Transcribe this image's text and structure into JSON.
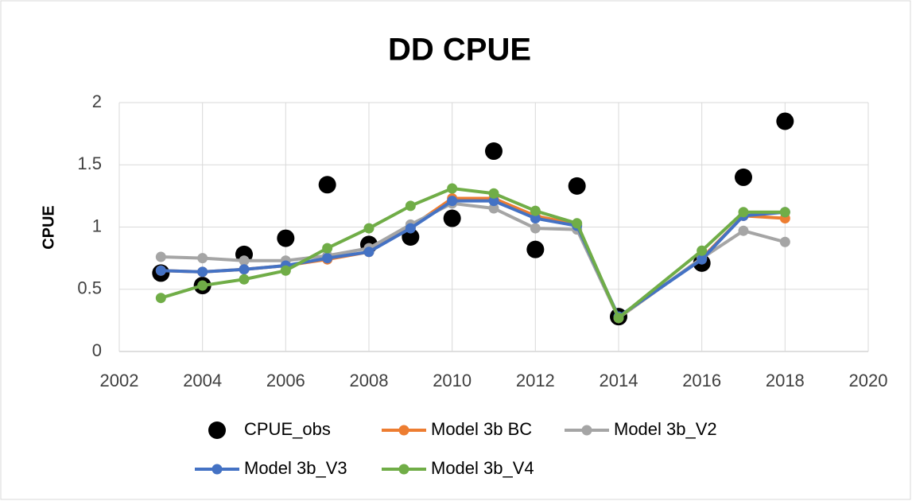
{
  "chart_data": {
    "type": "line",
    "title": "DD CPUE",
    "y_label": "CPUE",
    "x": [
      2003,
      2004,
      2005,
      2006,
      2007,
      2008,
      2009,
      2010,
      2011,
      2012,
      2013,
      2014,
      2016,
      2017,
      2018
    ],
    "series": [
      {
        "name": "CPUE_obs",
        "color": "#000000",
        "style": "markers",
        "values": [
          0.63,
          0.53,
          0.78,
          0.91,
          1.34,
          0.86,
          0.92,
          1.07,
          1.61,
          0.82,
          1.33,
          0.28,
          0.71,
          1.4,
          1.85
        ]
      },
      {
        "name": "Model 3b BC",
        "color": "#ed7d31",
        "style": "line",
        "values": [
          0.65,
          0.64,
          0.66,
          0.69,
          0.74,
          0.8,
          1.0,
          1.23,
          1.23,
          1.09,
          1.02,
          0.27,
          0.75,
          1.09,
          1.07
        ]
      },
      {
        "name": "Model 3b_V2",
        "color": "#a5a5a5",
        "style": "line",
        "values": [
          0.76,
          0.75,
          0.73,
          0.73,
          0.77,
          0.83,
          1.02,
          1.19,
          1.15,
          0.99,
          0.98,
          0.27,
          0.75,
          0.97,
          0.88
        ]
      },
      {
        "name": "Model 3b_V3",
        "color": "#4472c4",
        "style": "line",
        "values": [
          0.65,
          0.64,
          0.66,
          0.69,
          0.75,
          0.8,
          0.99,
          1.21,
          1.21,
          1.07,
          1.01,
          0.28,
          0.74,
          1.09,
          1.12
        ]
      },
      {
        "name": "Model 3b_V4",
        "color": "#70ad47",
        "style": "line",
        "values": [
          0.43,
          0.53,
          0.58,
          0.65,
          0.83,
          0.99,
          1.17,
          1.31,
          1.27,
          1.13,
          1.03,
          0.27,
          0.81,
          1.12,
          1.12
        ]
      }
    ],
    "xlim": [
      2002,
      2020
    ],
    "xticks": [
      2002,
      2004,
      2006,
      2008,
      2010,
      2012,
      2014,
      2016,
      2018,
      2020
    ],
    "ylim": [
      0,
      2
    ],
    "yticks": [
      0,
      0.5,
      1,
      1.5,
      2
    ],
    "grid": true,
    "legend": "bottom"
  }
}
